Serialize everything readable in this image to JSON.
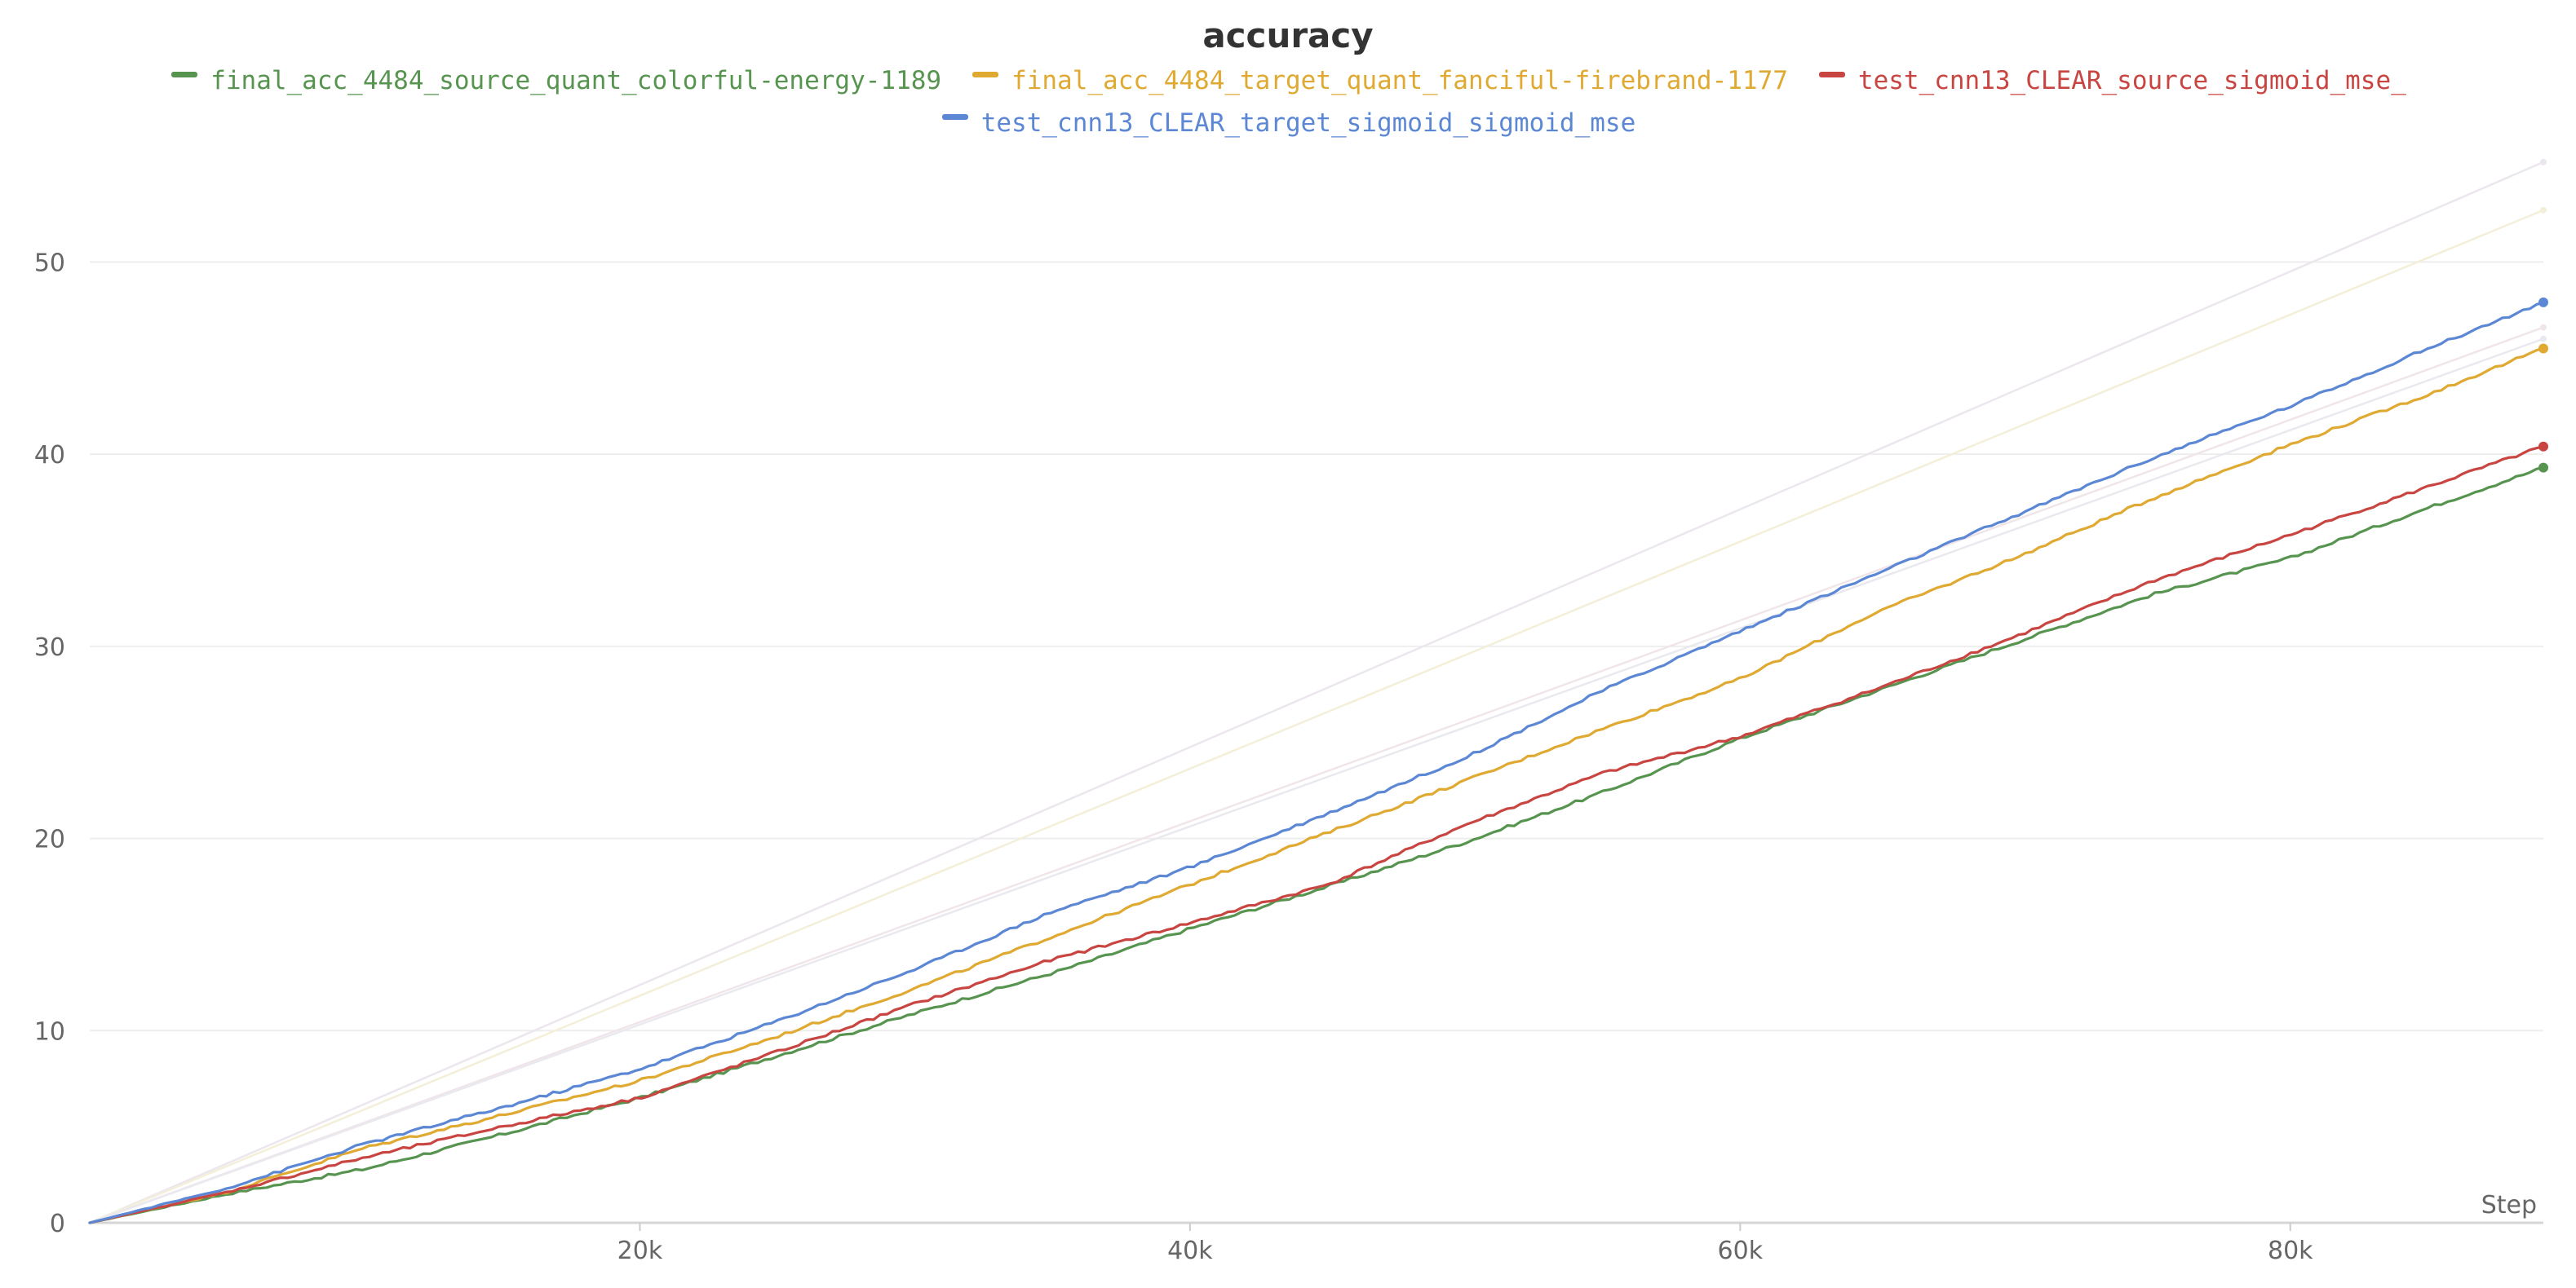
{
  "chart_data": {
    "type": "line",
    "title": "accuracy",
    "xlabel": "Step",
    "ylabel": "",
    "xlim": [
      0,
      89200
    ],
    "ylim": [
      0,
      56
    ],
    "x_ticks": [
      20000,
      40000,
      60000,
      80000
    ],
    "x_tick_labels": [
      "20k",
      "40k",
      "60k",
      "80k"
    ],
    "y_ticks": [
      0,
      10,
      20,
      30,
      40,
      50
    ],
    "y_tick_labels": [
      "0",
      "10",
      "20",
      "30",
      "40",
      "50"
    ],
    "grid": true,
    "legend_position": "top-center",
    "x": [
      0,
      5000,
      10000,
      15000,
      20000,
      25000,
      30000,
      35000,
      40000,
      45000,
      50000,
      55000,
      60000,
      65000,
      70000,
      75000,
      80000,
      85000,
      89200
    ],
    "series": [
      {
        "name": "final_acc_4484_source_quant_colorful-energy-1189",
        "color": "#56944f",
        "values": [
          0,
          1.5,
          2.8,
          4.6,
          6.5,
          8.7,
          10.9,
          13.0,
          15.3,
          17.5,
          19.8,
          22.4,
          25.2,
          27.7,
          30.2,
          32.7,
          34.6,
          37.2,
          39.3
        ]
      },
      {
        "name": "final_acc_4484_target_quant_fanciful-firebrand-1177",
        "color": "#dfa932",
        "values": [
          0,
          1.6,
          3.9,
          5.6,
          7.4,
          9.7,
          12.2,
          14.9,
          17.6,
          20.3,
          23.0,
          25.7,
          28.3,
          31.8,
          34.6,
          37.7,
          40.5,
          43.1,
          45.5
        ]
      },
      {
        "name": "test_cnn13_CLEAR_source_sigmoid_mse_",
        "color": "#c84541",
        "values": [
          0,
          1.6,
          3.4,
          5.0,
          6.5,
          8.9,
          11.4,
          13.7,
          15.6,
          17.6,
          20.7,
          23.4,
          25.3,
          27.8,
          30.5,
          33.4,
          35.8,
          38.3,
          40.4
        ]
      },
      {
        "name": "test_cnn13_CLEAR_target_sigmoid_sigmoid_mse",
        "color": "#5b87d5",
        "values": [
          0,
          1.8,
          4.1,
          6.0,
          8.0,
          10.5,
          13.2,
          16.2,
          18.5,
          21.3,
          24.2,
          27.7,
          30.8,
          33.8,
          36.8,
          39.8,
          42.5,
          45.5,
          47.9
        ]
      }
    ],
    "background_series": [
      {
        "color": "#ece6ee",
        "values": [
          0,
          55.2
        ]
      },
      {
        "color": "#f3efd9",
        "values": [
          0,
          52.7
        ]
      },
      {
        "color": "#f0e6ea",
        "values": [
          0,
          46.6
        ]
      },
      {
        "color": "#e9e9ef",
        "values": [
          0,
          46.0
        ]
      }
    ]
  }
}
